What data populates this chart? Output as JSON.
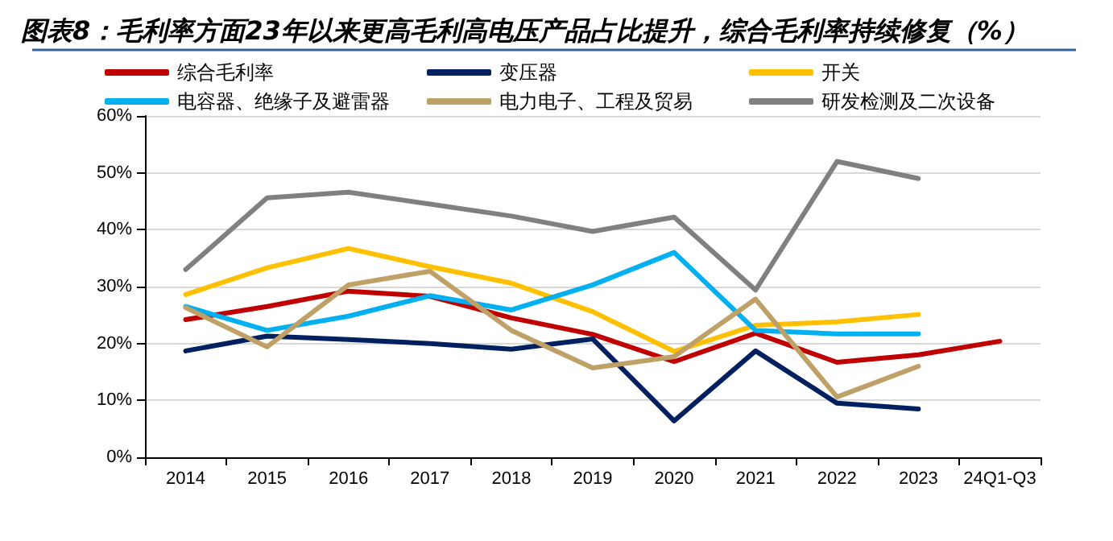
{
  "chart_data": {
    "type": "line",
    "title": "图表8：毛利率方面23年以来更高毛利高电压产品占比提升，综合毛利率持续修复（%）",
    "categories": [
      "2014",
      "2015",
      "2016",
      "2017",
      "2018",
      "2019",
      "2020",
      "2021",
      "2022",
      "2023",
      "24Q1-Q3"
    ],
    "series": [
      {
        "name": "综合毛利率",
        "color": "#c00000",
        "values": [
          24.2,
          26.5,
          29.2,
          28.3,
          24.5,
          21.6,
          16.8,
          21.8,
          16.7,
          18.0,
          20.4
        ]
      },
      {
        "name": "变压器",
        "color": "#002060",
        "values": [
          18.7,
          21.3,
          20.7,
          20.0,
          19.0,
          20.8,
          6.4,
          18.7,
          9.5,
          8.5,
          null
        ]
      },
      {
        "name": "开关",
        "color": "#ffc000",
        "values": [
          28.6,
          33.3,
          36.7,
          33.5,
          30.6,
          25.6,
          18.6,
          23.2,
          23.8,
          25.1,
          null
        ]
      },
      {
        "name": "电容器、绝缘子及避雷器",
        "color": "#00b0f0",
        "values": [
          26.5,
          22.3,
          24.8,
          28.4,
          25.9,
          30.3,
          36.0,
          22.3,
          21.7,
          21.7,
          null
        ]
      },
      {
        "name": "电力电子、工程及贸易",
        "color": "#bfa066",
        "values": [
          26.3,
          19.4,
          30.3,
          32.7,
          22.3,
          15.7,
          17.7,
          27.8,
          10.6,
          16.0,
          null
        ]
      },
      {
        "name": "研发检测及二次设备",
        "color": "#808080",
        "values": [
          33.0,
          45.6,
          46.6,
          44.5,
          42.4,
          39.7,
          42.2,
          29.4,
          52.0,
          49.0,
          null
        ]
      }
    ],
    "ylim": [
      0,
      60
    ],
    "yticks": [
      {
        "value": 0,
        "label": "0%"
      },
      {
        "value": 10,
        "label": "10%"
      },
      {
        "value": 20,
        "label": "20%"
      },
      {
        "value": 30,
        "label": "30%"
      },
      {
        "value": 40,
        "label": "40%"
      },
      {
        "value": 50,
        "label": "50%"
      },
      {
        "value": 60,
        "label": "60%"
      }
    ],
    "grid": "y",
    "legend": "top",
    "marker": "none",
    "line_style": "solid"
  }
}
